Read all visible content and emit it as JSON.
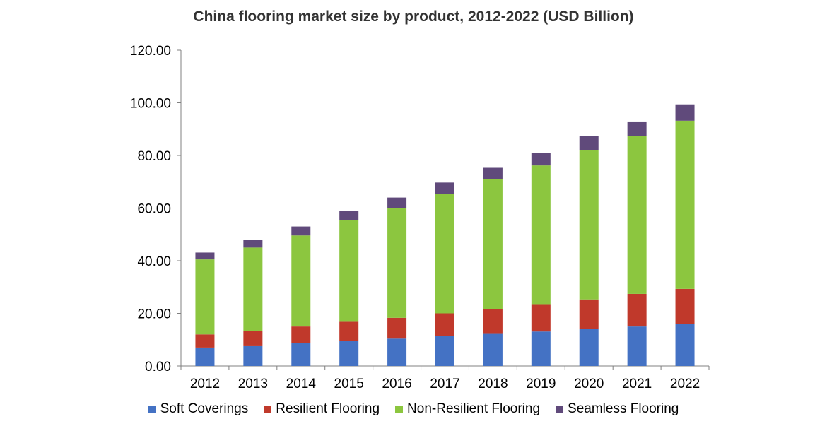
{
  "chart_data": {
    "type": "bar",
    "stacked": true,
    "title": "China flooring market size by product, 2012-2022 (USD Billion)",
    "xlabel": "",
    "ylabel": "",
    "ylim": [
      0,
      120
    ],
    "yticks": [
      "0.00",
      "20.00",
      "40.00",
      "60.00",
      "80.00",
      "100.00",
      "120.00"
    ],
    "grid": false,
    "legend_position": "bottom",
    "categories": [
      "2012",
      "2013",
      "2014",
      "2015",
      "2016",
      "2017",
      "2018",
      "2019",
      "2020",
      "2021",
      "2022"
    ],
    "series": [
      {
        "name": "Soft Coverings",
        "color": "#4472c4",
        "values": [
          7.0,
          7.8,
          8.6,
          9.5,
          10.4,
          11.3,
          12.2,
          13.1,
          14.0,
          15.0,
          16.0
        ]
      },
      {
        "name": "Resilient Flooring",
        "color": "#c0392b",
        "values": [
          5.0,
          5.6,
          6.4,
          7.3,
          7.9,
          8.7,
          9.5,
          10.4,
          11.3,
          12.4,
          13.3
        ]
      },
      {
        "name": "Non-Resilient Flooring",
        "color": "#8cc63f",
        "values": [
          28.5,
          31.6,
          34.6,
          38.6,
          41.8,
          45.4,
          49.3,
          52.7,
          56.7,
          60.0,
          63.9
        ]
      },
      {
        "name": "Seamless Flooring",
        "color": "#604a7b",
        "values": [
          2.6,
          3.0,
          3.4,
          3.6,
          3.9,
          4.3,
          4.3,
          4.8,
          5.3,
          5.5,
          6.2
        ]
      }
    ]
  }
}
